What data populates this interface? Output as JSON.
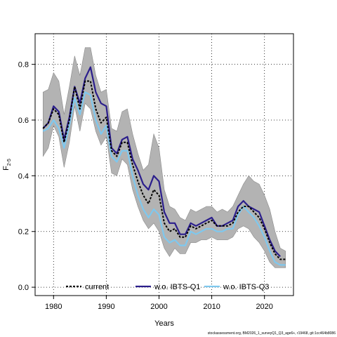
{
  "chart_data": {
    "type": "line",
    "title": "",
    "xlabel": "Years",
    "ylabel": "F",
    "ylabel_subscript": "2-5",
    "xlim": [
      1976.5,
      2025.5
    ],
    "ylim": [
      -0.03,
      0.91
    ],
    "x_ticks": [
      1980,
      1990,
      2000,
      2010,
      2020
    ],
    "x_tick_labels": [
      "1980",
      "1990",
      "2000",
      "2010",
      "2020"
    ],
    "y_ticks": [
      0.0,
      0.2,
      0.4,
      0.6,
      0.8
    ],
    "y_tick_labels": [
      "0.0",
      "0.2",
      "0.4",
      "0.6",
      "0.8"
    ],
    "grid": true,
    "legend_position": "bottom",
    "x": [
      1978,
      1979,
      1980,
      1981,
      1982,
      1983,
      1984,
      1985,
      1986,
      1987,
      1988,
      1989,
      1990,
      1991,
      1992,
      1993,
      1994,
      1995,
      1996,
      1997,
      1998,
      1999,
      2000,
      2001,
      2002,
      2003,
      2004,
      2005,
      2006,
      2007,
      2008,
      2009,
      2010,
      2011,
      2012,
      2013,
      2014,
      2015,
      2016,
      2017,
      2018,
      2019,
      2020,
      2021,
      2022,
      2023,
      2024
    ],
    "confidence_band": {
      "lower": [
        0.47,
        0.5,
        0.58,
        0.54,
        0.43,
        0.52,
        0.65,
        0.56,
        0.66,
        0.64,
        0.56,
        0.51,
        0.54,
        0.41,
        0.4,
        0.46,
        0.44,
        0.35,
        0.29,
        0.24,
        0.21,
        0.23,
        0.2,
        0.14,
        0.11,
        0.14,
        0.12,
        0.12,
        0.16,
        0.16,
        0.17,
        0.17,
        0.18,
        0.17,
        0.17,
        0.17,
        0.18,
        0.21,
        0.22,
        0.21,
        0.18,
        0.16,
        0.13,
        0.09,
        0.07,
        0.07,
        0.07
      ],
      "upper": [
        0.7,
        0.71,
        0.77,
        0.74,
        0.62,
        0.72,
        0.83,
        0.76,
        0.86,
        0.86,
        0.76,
        0.7,
        0.71,
        0.57,
        0.56,
        0.63,
        0.64,
        0.55,
        0.48,
        0.42,
        0.44,
        0.55,
        0.5,
        0.35,
        0.29,
        0.28,
        0.25,
        0.24,
        0.28,
        0.27,
        0.28,
        0.29,
        0.29,
        0.27,
        0.28,
        0.27,
        0.29,
        0.33,
        0.37,
        0.4,
        0.38,
        0.37,
        0.33,
        0.28,
        0.2,
        0.14,
        0.13
      ],
      "color": "#b3b3b3"
    },
    "series": [
      {
        "name": "current",
        "color": "#000000",
        "dash": "3,2",
        "values": [
          0.57,
          0.59,
          0.64,
          0.62,
          0.52,
          0.6,
          0.72,
          0.64,
          0.74,
          0.74,
          0.64,
          0.59,
          0.61,
          0.49,
          0.47,
          0.52,
          0.52,
          0.44,
          0.38,
          0.33,
          0.3,
          0.35,
          0.33,
          0.23,
          0.2,
          0.21,
          0.18,
          0.18,
          0.22,
          0.21,
          0.22,
          0.23,
          0.24,
          0.22,
          0.22,
          0.22,
          0.23,
          0.27,
          0.29,
          0.29,
          0.27,
          0.25,
          0.21,
          0.16,
          0.12,
          0.1,
          0.1
        ]
      },
      {
        "name": "w.o. IBTS-Q1",
        "color": "#2b1e8c",
        "dash": "",
        "values": [
          0.57,
          0.59,
          0.65,
          0.63,
          0.53,
          0.61,
          0.72,
          0.66,
          0.75,
          0.79,
          0.7,
          0.66,
          0.65,
          0.5,
          0.48,
          0.53,
          0.54,
          0.46,
          0.42,
          0.37,
          0.35,
          0.4,
          0.38,
          0.27,
          0.23,
          0.23,
          0.19,
          0.19,
          0.23,
          0.22,
          0.23,
          0.24,
          0.25,
          0.22,
          0.22,
          0.23,
          0.24,
          0.29,
          0.31,
          0.29,
          0.28,
          0.27,
          0.22,
          0.17,
          0.13,
          0.11,
          null
        ]
      },
      {
        "name": "w.o. IBTS-Q3",
        "color": "#7fc8ee",
        "dash": "",
        "values": [
          0.56,
          0.57,
          0.6,
          0.57,
          0.5,
          0.58,
          0.68,
          0.62,
          0.7,
          0.69,
          0.6,
          0.55,
          0.58,
          0.47,
          0.45,
          0.49,
          0.49,
          0.4,
          0.33,
          0.28,
          0.25,
          0.28,
          0.26,
          0.18,
          0.16,
          0.17,
          0.15,
          0.15,
          0.2,
          0.19,
          0.2,
          0.21,
          0.21,
          0.2,
          0.2,
          0.21,
          0.21,
          0.26,
          0.29,
          0.27,
          0.25,
          0.22,
          0.18,
          0.13,
          0.09,
          0.08,
          0.08
        ]
      }
    ]
  },
  "footnote": "stockassessment.org, BM2026_1_surveyQ1_Q3_age6+, r19468, git:1cc464b8086"
}
